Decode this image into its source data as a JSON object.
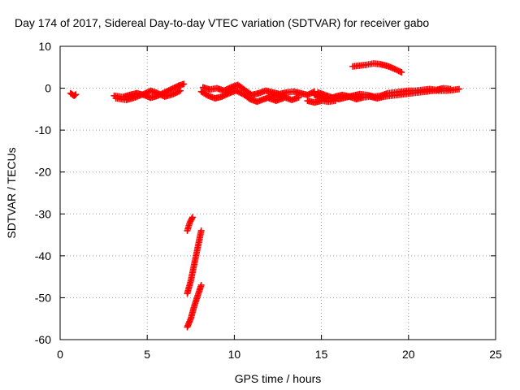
{
  "chart_data": {
    "type": "scatter",
    "title": "Day 174 of 2017, Sidereal Day-to-day VTEC variation (SDTVAR) for receiver gabo",
    "xlabel": "GPS time / hours",
    "ylabel": "SDTVAR / TECUs",
    "xlim": [
      0,
      25
    ],
    "ylim": [
      -60,
      10
    ],
    "xticks": [
      0,
      5,
      10,
      15,
      20,
      25
    ],
    "yticks": [
      10,
      0,
      -10,
      -20,
      -30,
      -40,
      -50,
      -60
    ],
    "grid": true,
    "marker": "plus",
    "color": "#ff0000",
    "series": [
      {
        "segments": [
          [
            [
              0.6,
              -1.2
            ],
            [
              0.8,
              -1.8
            ],
            [
              0.9,
              -1.5
            ]
          ],
          [
            [
              3.1,
              -1.8
            ],
            [
              3.6,
              -2.1
            ],
            [
              4.0,
              -1.6
            ],
            [
              4.4,
              -1.2
            ],
            [
              4.8,
              -1.6
            ],
            [
              5.2,
              -2.3
            ],
            [
              5.6,
              -1.8
            ],
            [
              6.0,
              -1.0
            ],
            [
              6.4,
              -0.2
            ],
            [
              6.8,
              0.6
            ],
            [
              7.1,
              1.0
            ]
          ],
          [
            [
              3.2,
              -2.4
            ],
            [
              3.8,
              -2.8
            ],
            [
              4.3,
              -2.2
            ],
            [
              4.8,
              -1.4
            ],
            [
              5.2,
              -0.6
            ],
            [
              5.6,
              -1.2
            ],
            [
              6.0,
              -2.0
            ],
            [
              6.5,
              -1.4
            ],
            [
              6.9,
              -0.6
            ]
          ],
          [
            [
              8.1,
              -0.8
            ],
            [
              8.5,
              -1.8
            ],
            [
              8.9,
              -2.4
            ],
            [
              9.3,
              -2.0
            ],
            [
              9.7,
              -1.2
            ],
            [
              10.1,
              -0.6
            ],
            [
              10.5,
              -1.4
            ],
            [
              10.9,
              -2.6
            ],
            [
              11.3,
              -3.2
            ],
            [
              11.7,
              -2.6
            ],
            [
              12.1,
              -2.0
            ],
            [
              12.5,
              -1.6
            ],
            [
              12.9,
              -2.2
            ],
            [
              13.3,
              -2.8
            ],
            [
              13.7,
              -2.2
            ]
          ],
          [
            [
              8.2,
              0.2
            ],
            [
              8.6,
              -0.3
            ],
            [
              9.0,
              0.0
            ],
            [
              9.4,
              -0.6
            ],
            [
              9.8,
              0.2
            ],
            [
              10.2,
              0.8
            ],
            [
              10.6,
              -0.4
            ],
            [
              11.0,
              -1.6
            ],
            [
              11.4,
              -1.2
            ],
            [
              11.8,
              -0.6
            ],
            [
              12.2,
              -1.0
            ],
            [
              12.6,
              -1.4
            ],
            [
              13.0,
              -1.0
            ],
            [
              13.4,
              -0.8
            ],
            [
              13.8,
              -1.2
            ],
            [
              14.2,
              -1.6
            ],
            [
              14.6,
              -0.8
            ]
          ],
          [
            [
              12.0,
              -2.4
            ],
            [
              12.4,
              -3.0
            ],
            [
              12.8,
              -2.4
            ]
          ],
          [
            [
              14.6,
              -1.6
            ],
            [
              15.0,
              -2.2
            ],
            [
              15.4,
              -2.6
            ],
            [
              15.8,
              -2.0
            ],
            [
              16.2,
              -1.6
            ],
            [
              16.6,
              -2.0
            ],
            [
              17.0,
              -2.6
            ],
            [
              17.4,
              -2.2
            ],
            [
              17.8,
              -2.0
            ],
            [
              18.2,
              -2.4
            ],
            [
              18.6,
              -2.0
            ],
            [
              19.0,
              -1.8
            ],
            [
              19.4,
              -1.6
            ],
            [
              19.8,
              -1.4
            ],
            [
              20.2,
              -1.2
            ],
            [
              20.6,
              -1.0
            ],
            [
              21.0,
              -0.8
            ],
            [
              21.4,
              -0.6
            ],
            [
              21.8,
              -0.6
            ],
            [
              22.2,
              -0.6
            ],
            [
              22.6,
              -0.4
            ],
            [
              22.9,
              -0.2
            ]
          ],
          [
            [
              14.8,
              -1.0
            ],
            [
              15.2,
              -1.6
            ],
            [
              15.6,
              -2.2
            ],
            [
              16.0,
              -2.6
            ],
            [
              16.4,
              -2.2
            ],
            [
              16.8,
              -1.8
            ],
            [
              17.2,
              -1.4
            ],
            [
              17.6,
              -1.6
            ],
            [
              18.0,
              -2.0
            ],
            [
              18.4,
              -1.8
            ],
            [
              18.8,
              -1.2
            ],
            [
              19.2,
              -1.0
            ],
            [
              19.6,
              -0.8
            ],
            [
              20.0,
              -0.6
            ],
            [
              20.4,
              -0.6
            ],
            [
              20.8,
              -0.4
            ],
            [
              21.2,
              -0.2
            ],
            [
              21.6,
              -0.4
            ],
            [
              22.0,
              0.0
            ],
            [
              22.4,
              -0.2
            ]
          ],
          [
            [
              14.2,
              -3.0
            ],
            [
              14.6,
              -3.4
            ],
            [
              15.0,
              -3.0
            ],
            [
              15.4,
              -3.2
            ],
            [
              15.8,
              -3.0
            ]
          ],
          [
            [
              16.8,
              5.2
            ],
            [
              17.2,
              5.4
            ],
            [
              17.6,
              5.6
            ],
            [
              18.0,
              5.9
            ],
            [
              18.4,
              5.7
            ],
            [
              18.8,
              5.3
            ],
            [
              19.2,
              4.6
            ],
            [
              19.6,
              3.8
            ]
          ],
          [
            [
              7.3,
              -34.0
            ],
            [
              7.45,
              -32.0
            ],
            [
              7.6,
              -30.8
            ]
          ],
          [
            [
              7.3,
              -49.0
            ],
            [
              7.5,
              -46.0
            ],
            [
              7.7,
              -42.0
            ],
            [
              7.9,
              -38.0
            ],
            [
              8.1,
              -34.0
            ]
          ],
          [
            [
              7.3,
              -57.0
            ],
            [
              7.5,
              -55.0
            ],
            [
              7.7,
              -52.0
            ],
            [
              7.9,
              -49.5
            ],
            [
              8.1,
              -47.0
            ]
          ]
        ]
      }
    ]
  }
}
